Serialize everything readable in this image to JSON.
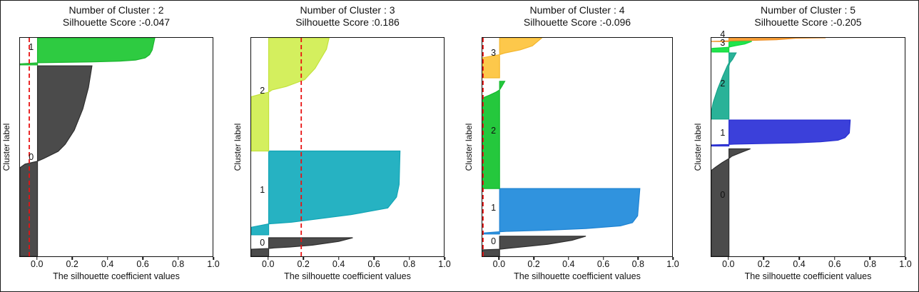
{
  "figure": {
    "xlabel": "The silhouette coefficient values",
    "ylabel": "Cluster label",
    "x_ticks": [
      "0.0",
      "0.2",
      "0.4",
      "0.6",
      "0.8",
      "1.0"
    ],
    "x_tick_values": [
      0.0,
      0.2,
      0.4,
      0.6,
      0.8,
      1.0
    ],
    "xlim": [
      -0.1,
      1.0
    ],
    "colors": {
      "threshold_line": "#e81212",
      "spine": "#111111",
      "text": "#111111",
      "background": "#ffffff"
    }
  },
  "chart_data": [
    {
      "type": "area",
      "subtype": "silhouette-plot",
      "title_line1": "Number of Cluster : 2",
      "title_line2": "Silhouette Score :-0.047",
      "n_clusters": 2,
      "silhouette_score": -0.047,
      "threshold_line_x": -0.047,
      "xlabel": "The silhouette coefficient values",
      "ylabel": "Cluster label",
      "clusters": [
        {
          "label": "0",
          "fill": "#4b4b4b",
          "stroke": "#2f2f2f",
          "band": [
            0.128,
            1.0
          ],
          "label_y": 0.545,
          "profile": [
            [
              0,
              0.311
            ],
            [
              0.114,
              0.291
            ],
            [
              0.226,
              0.259
            ],
            [
              0.338,
              0.21
            ],
            [
              0.412,
              0.158
            ],
            [
              0.449,
              0.118
            ],
            [
              0.486,
              0.037
            ],
            [
              0.501,
              0
            ],
            [
              0.516,
              -0.071
            ],
            [
              0.535,
              -0.1
            ],
            [
              1,
              -0.1
            ]
          ]
        },
        {
          "label": "1",
          "fill": "#2ecb41",
          "stroke": "#1bb52f",
          "band": [
            0.0,
            0.124
          ],
          "label_y": 0.042,
          "profile": [
            [
              0,
              0.67
            ],
            [
              0.45,
              0.655
            ],
            [
              0.62,
              0.64
            ],
            [
              0.74,
              0.615
            ],
            [
              0.82,
              0.56
            ],
            [
              0.86,
              0.47
            ],
            [
              0.89,
              0.3
            ],
            [
              0.91,
              0.1
            ],
            [
              0.92,
              0
            ],
            [
              0.94,
              -0.05
            ],
            [
              0.96,
              -0.1
            ],
            [
              1,
              -0.1
            ]
          ]
        }
      ]
    },
    {
      "type": "area",
      "subtype": "silhouette-plot",
      "title_line1": "Number of Cluster : 3",
      "title_line2": "Silhouette Score :0.186",
      "n_clusters": 3,
      "silhouette_score": 0.186,
      "threshold_line_x": 0.186,
      "xlabel": "The silhouette coefficient values",
      "ylabel": "Cluster label",
      "clusters": [
        {
          "label": "0",
          "fill": "#4b4b4b",
          "stroke": "#2f2f2f",
          "band": [
            0.915,
            1.0
          ],
          "label_y": 0.938,
          "profile": [
            [
              0,
              0.48
            ],
            [
              0.2,
              0.4
            ],
            [
              0.4,
              0.25
            ],
            [
              0.5,
              0.12
            ],
            [
              0.55,
              0.03
            ],
            [
              0.58,
              0
            ],
            [
              0.62,
              -0.1
            ],
            [
              1,
              -0.1
            ]
          ]
        },
        {
          "label": "1",
          "fill": "#26b2c2",
          "stroke": "#12a5b5",
          "band": [
            0.518,
            0.9015
          ],
          "label_y": 0.695,
          "profile": [
            [
              0,
              0.75
            ],
            [
              0.4,
              0.745
            ],
            [
              0.55,
              0.73
            ],
            [
              0.68,
              0.68
            ],
            [
              0.76,
              0.47
            ],
            [
              0.85,
              0.13
            ],
            [
              0.87,
              0
            ],
            [
              0.91,
              -0.1
            ],
            [
              1,
              -0.1
            ]
          ]
        },
        {
          "label": "2",
          "fill": "#d4ef5e",
          "stroke": "#c3e23c",
          "band": [
            0.0,
            0.518
          ],
          "label_y": 0.242,
          "profile": [
            [
              0,
              0.345
            ],
            [
              0.1,
              0.33
            ],
            [
              0.27,
              0.265
            ],
            [
              0.37,
              0.205
            ],
            [
              0.43,
              0.1
            ],
            [
              0.46,
              0.02
            ],
            [
              0.48,
              0
            ],
            [
              0.5,
              -0.05
            ],
            [
              0.52,
              -0.1
            ],
            [
              1,
              -0.1
            ]
          ]
        }
      ]
    },
    {
      "type": "area",
      "subtype": "silhouette-plot",
      "title_line1": "Number of Cluster : 4",
      "title_line2": "Silhouette Score :-0.096",
      "n_clusters": 4,
      "silhouette_score": -0.096,
      "threshold_line_x": -0.096,
      "xlabel": "The silhouette coefficient values",
      "ylabel": "Cluster label",
      "clusters": [
        {
          "label": "0",
          "fill": "#4b4b4b",
          "stroke": "#2f2f2f",
          "band": [
            0.908,
            1.0
          ],
          "label_y": 0.932,
          "profile": [
            [
              0,
              0.5
            ],
            [
              0.2,
              0.42
            ],
            [
              0.4,
              0.28
            ],
            [
              0.5,
              0.17
            ],
            [
              0.6,
              0.05
            ],
            [
              0.65,
              0
            ],
            [
              0.68,
              -0.1
            ],
            [
              1,
              -0.1
            ]
          ]
        },
        {
          "label": "1",
          "fill": "#3093de",
          "stroke": "#1f83d2",
          "band": [
            0.69,
            0.898
          ],
          "label_y": 0.778,
          "profile": [
            [
              0,
              0.813
            ],
            [
              0.6,
              0.8
            ],
            [
              0.75,
              0.77
            ],
            [
              0.82,
              0.7
            ],
            [
              0.88,
              0.5
            ],
            [
              0.92,
              0.25
            ],
            [
              0.94,
              0.05
            ],
            [
              0.95,
              0
            ],
            [
              0.97,
              -0.07
            ],
            [
              0.98,
              -0.1
            ],
            [
              1,
              -0.1
            ]
          ]
        },
        {
          "label": "2",
          "fill": "#25c83d",
          "stroke": "#14b92e",
          "band": [
            0.199,
            0.69
          ],
          "label_y": 0.425,
          "profile": [
            [
              0,
              0.03
            ],
            [
              0.05,
              0.012
            ],
            [
              0.08,
              0
            ],
            [
              0.1,
              -0.02
            ],
            [
              0.13,
              -0.06
            ],
            [
              0.15,
              -0.09
            ],
            [
              0.17,
              -0.1
            ],
            [
              1,
              -0.1
            ]
          ]
        },
        {
          "label": "3",
          "fill": "#fdc84b",
          "stroke": "#f3b62e",
          "band": [
            0.0,
            0.183
          ],
          "label_y": 0.068,
          "profile": [
            [
              0,
              0.245
            ],
            [
              0.2,
              0.19
            ],
            [
              0.3,
              0.12
            ],
            [
              0.38,
              0.03
            ],
            [
              0.42,
              0
            ],
            [
              0.46,
              -0.05
            ],
            [
              0.5,
              -0.1
            ],
            [
              1,
              -0.1
            ]
          ]
        }
      ]
    },
    {
      "type": "area",
      "subtype": "silhouette-plot",
      "title_line1": "Number of Cluster : 5",
      "title_line2": "Silhouette Score :-0.205",
      "n_clusters": 5,
      "silhouette_score": -0.205,
      "threshold_line_x": -0.205,
      "xlabel": "The silhouette coefficient values",
      "ylabel": "Cluster label",
      "clusters": [
        {
          "label": "0",
          "fill": "#4b4b4b",
          "stroke": "#2f2f2f",
          "band": [
            0.508,
            1.0
          ],
          "label_y": 0.72,
          "profile": [
            [
              0,
              0.122
            ],
            [
              0.04,
              0.06
            ],
            [
              0.07,
              0.015
            ],
            [
              0.09,
              0
            ],
            [
              0.13,
              -0.04
            ],
            [
              0.17,
              -0.075
            ],
            [
              0.2,
              -0.1
            ],
            [
              1,
              -0.1
            ]
          ]
        },
        {
          "label": "1",
          "fill": "#3b40da",
          "stroke": "#282ed0",
          "band": [
            0.376,
            0.495
          ],
          "label_y": 0.435,
          "profile": [
            [
              0,
              0.69
            ],
            [
              0.5,
              0.685
            ],
            [
              0.68,
              0.66
            ],
            [
              0.78,
              0.62
            ],
            [
              0.84,
              0.52
            ],
            [
              0.88,
              0.38
            ],
            [
              0.91,
              0.18
            ],
            [
              0.93,
              0.03
            ],
            [
              0.94,
              0
            ],
            [
              0.96,
              -0.1
            ],
            [
              1,
              -0.1
            ]
          ]
        },
        {
          "label": "2",
          "fill": "#2ab298",
          "stroke": "#17a389",
          "band": [
            0.069,
            0.372
          ],
          "label_y": 0.21,
          "profile": [
            [
              0,
              0.041
            ],
            [
              0.1,
              0.02
            ],
            [
              0.15,
              0.005
            ],
            [
              0.2,
              -0.01
            ],
            [
              0.35,
              -0.035
            ],
            [
              0.55,
              -0.065
            ],
            [
              0.75,
              -0.09
            ],
            [
              0.88,
              -0.1
            ],
            [
              1,
              -0.1
            ]
          ]
        },
        {
          "label": "3",
          "fill": "#20e44c",
          "stroke": "#10d83e",
          "band": [
            0.016,
            0.065
          ],
          "label_y": 0.022,
          "profile": [
            [
              0,
              0.13
            ],
            [
              0.25,
              0.09
            ],
            [
              0.4,
              0.04
            ],
            [
              0.5,
              0.01
            ],
            [
              0.55,
              0
            ],
            [
              0.6,
              -0.04
            ],
            [
              0.65,
              -0.096
            ],
            [
              1,
              -0.096
            ]
          ]
        },
        {
          "label": "4",
          "fill": "#f7a23d",
          "stroke": "#ef9026",
          "band": [
            0.0,
            0.017
          ],
          "label_y": -0.015,
          "profile": [
            [
              0,
              0.55
            ],
            [
              0.1,
              0.38
            ],
            [
              0.3,
              0.33
            ],
            [
              0.5,
              0.27
            ],
            [
              0.7,
              0.12
            ],
            [
              0.8,
              0.02
            ],
            [
              0.85,
              -0.02
            ],
            [
              0.95,
              -0.1
            ],
            [
              1,
              -0.1
            ]
          ]
        }
      ]
    }
  ]
}
